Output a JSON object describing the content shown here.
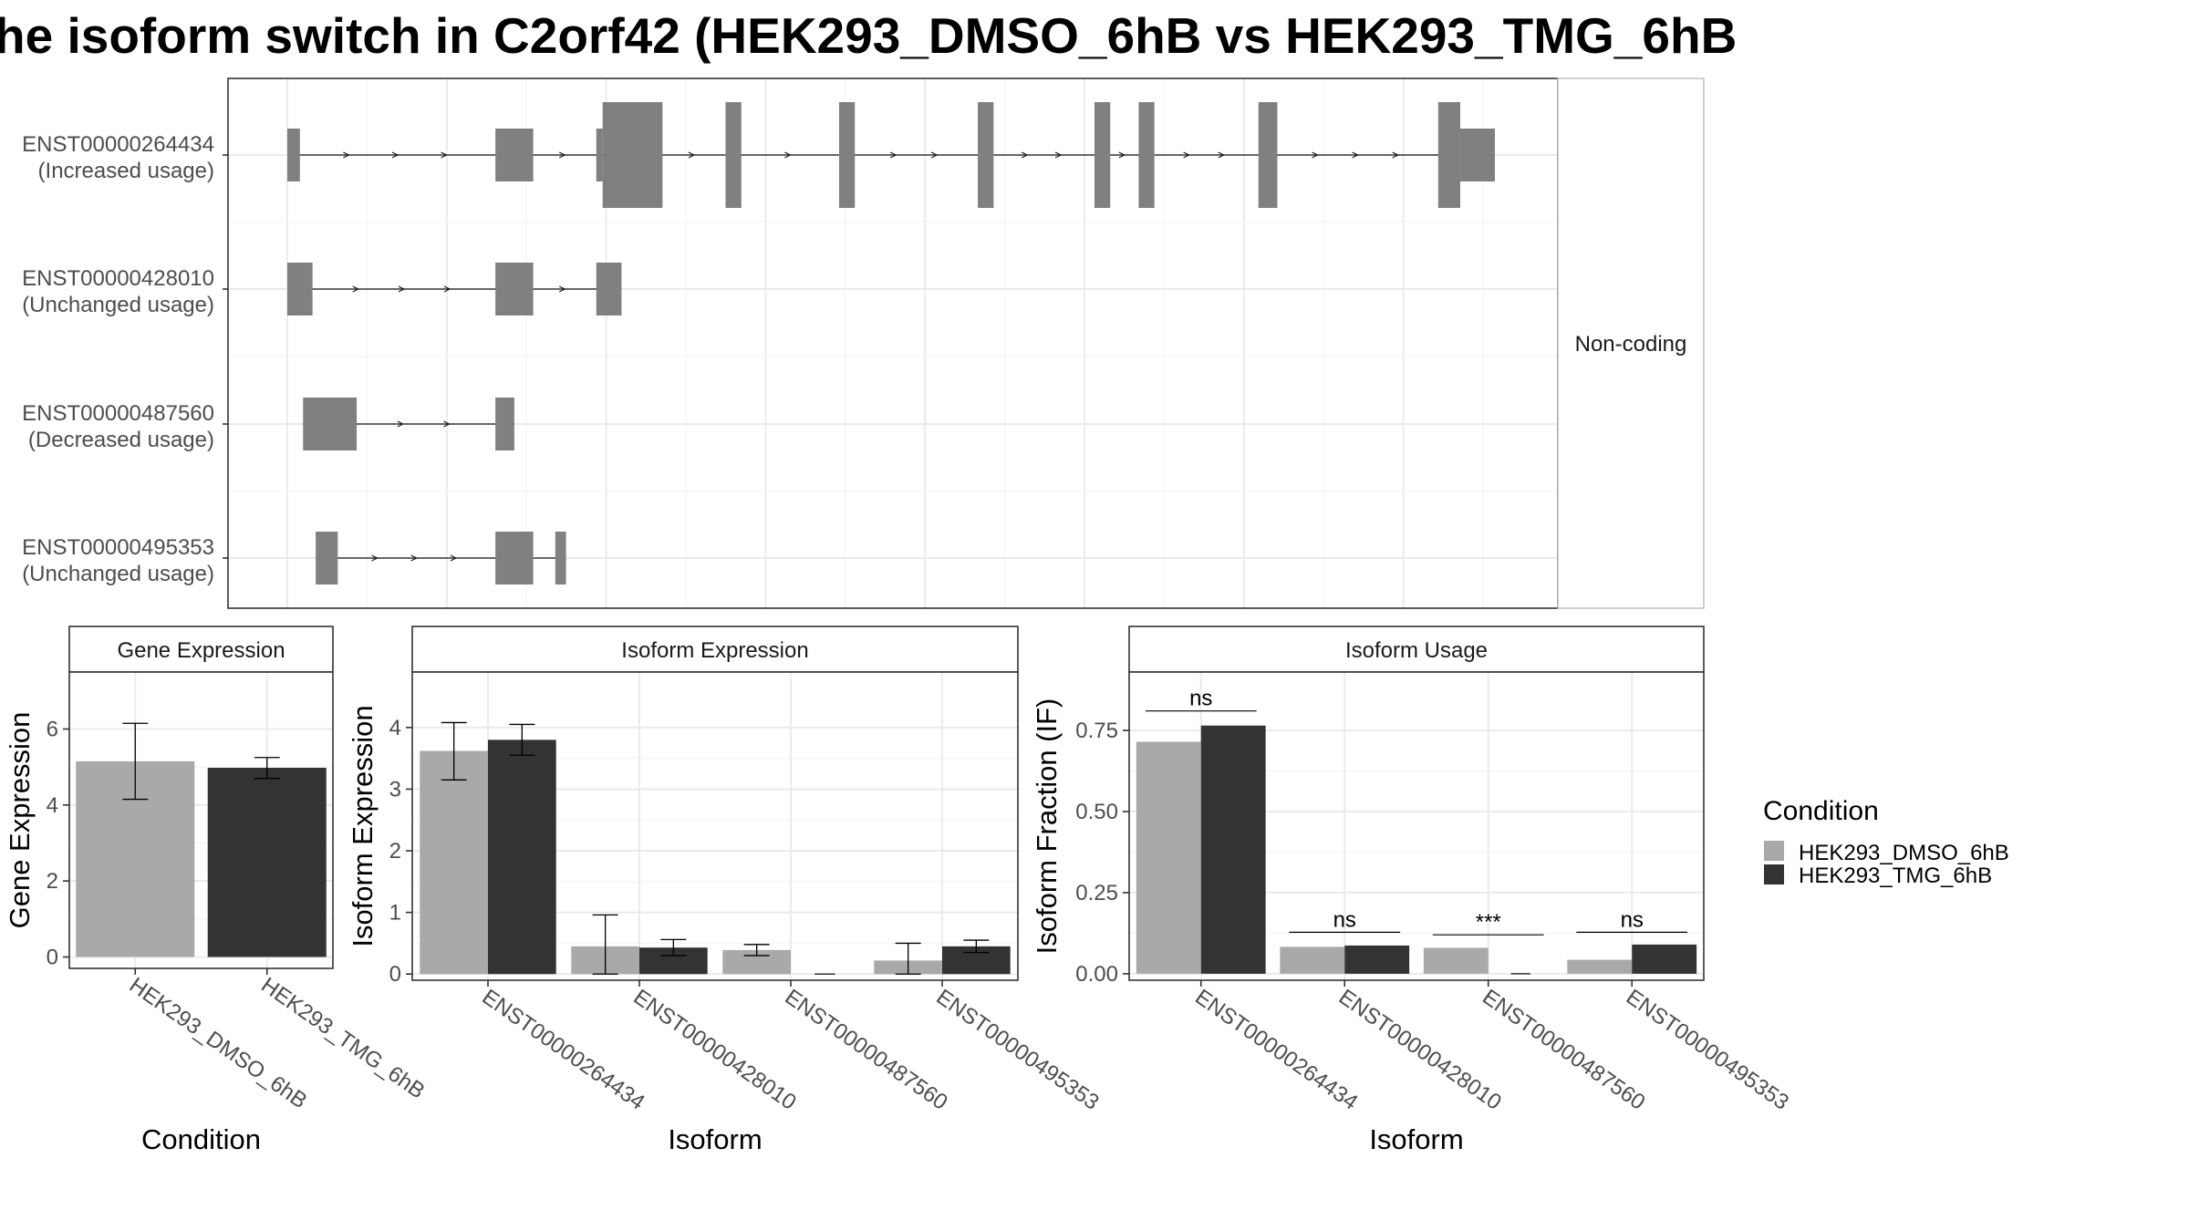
{
  "title": "he isoform switch in C2orf42 (HEK293_DMSO_6hB vs HEK293_TMG_6hB",
  "colors": {
    "exon": "#808080",
    "dmso": "#a9a9a9",
    "tmg": "#333333"
  },
  "chart_data": [
    {
      "type": "gene-structure",
      "facet_label": "Non-coding",
      "x_range": [
        0,
        2000
      ],
      "transcripts": [
        {
          "id": "ENST00000264434",
          "status": "(Increased usage)",
          "exons": [
            {
              "start": 90,
              "end": 110,
              "size": "small"
            },
            {
              "start": 420,
              "end": 480,
              "size": "small"
            },
            {
              "start": 580,
              "end": 590,
              "size": "small"
            },
            {
              "start": 590,
              "end": 685,
              "size": "large"
            },
            {
              "start": 785,
              "end": 810,
              "size": "large"
            },
            {
              "start": 965,
              "end": 990,
              "size": "large"
            },
            {
              "start": 1185,
              "end": 1210,
              "size": "large"
            },
            {
              "start": 1370,
              "end": 1395,
              "size": "large"
            },
            {
              "start": 1440,
              "end": 1465,
              "size": "large"
            },
            {
              "start": 1630,
              "end": 1660,
              "size": "large"
            },
            {
              "start": 1915,
              "end": 1950,
              "size": "large"
            },
            {
              "start": 1950,
              "end": 2005,
              "size": "small"
            }
          ]
        },
        {
          "id": "ENST00000428010",
          "status": "(Unchanged usage)",
          "exons": [
            {
              "start": 90,
              "end": 130,
              "size": "small"
            },
            {
              "start": 420,
              "end": 480,
              "size": "small"
            },
            {
              "start": 580,
              "end": 620,
              "size": "small"
            }
          ]
        },
        {
          "id": "ENST00000487560",
          "status": "(Decreased usage)",
          "exons": [
            {
              "start": 115,
              "end": 200,
              "size": "small"
            },
            {
              "start": 420,
              "end": 450,
              "size": "small"
            }
          ]
        },
        {
          "id": "ENST00000495353",
          "status": "(Unchanged usage)",
          "exons": [
            {
              "start": 135,
              "end": 170,
              "size": "small"
            },
            {
              "start": 420,
              "end": 480,
              "size": "small"
            },
            {
              "start": 515,
              "end": 532,
              "size": "small"
            }
          ]
        }
      ]
    },
    {
      "type": "bar",
      "strip_label": "Gene Expression",
      "xlabel": "Condition",
      "ylabel": "Gene Expression",
      "ylim": [
        -0.3,
        7.5
      ],
      "yticks": [
        "0",
        "2",
        "4",
        "6"
      ],
      "ytick_values": [
        0,
        2,
        4,
        6
      ],
      "categories": [
        "HEK293_DMSO_6hB",
        "HEK293_TMG_6hB"
      ],
      "values": [
        5.15,
        4.98
      ],
      "error_low": [
        4.15,
        4.7
      ],
      "error_high": [
        6.15,
        5.25
      ]
    },
    {
      "type": "bar",
      "strip_label": "Isoform Expression",
      "xlabel": "Isoform",
      "ylabel": "Isoform Expression",
      "ylim": [
        -0.1,
        4.9
      ],
      "yticks": [
        "0",
        "1",
        "2",
        "3",
        "4"
      ],
      "ytick_values": [
        0,
        1,
        2,
        3,
        4
      ],
      "categories": [
        "ENST00000264434",
        "ENST00000428010",
        "ENST00000487560",
        "ENST00000495353"
      ],
      "series": [
        {
          "name": "HEK293_DMSO_6hB",
          "values": [
            3.62,
            0.45,
            0.39,
            0.22
          ],
          "error_low": [
            3.15,
            0.0,
            0.3,
            0.0
          ],
          "error_high": [
            4.08,
            0.96,
            0.48,
            0.5
          ]
        },
        {
          "name": "HEK293_TMG_6hB",
          "values": [
            3.8,
            0.43,
            0.0,
            0.45
          ],
          "error_low": [
            3.55,
            0.3,
            0.0,
            0.35
          ],
          "error_high": [
            4.05,
            0.56,
            0.0,
            0.55
          ]
        }
      ]
    },
    {
      "type": "bar",
      "strip_label": "Isoform Usage",
      "xlabel": "Isoform",
      "ylabel": "Isoform Fraction (IF)",
      "ylim": [
        -0.02,
        0.93
      ],
      "yticks": [
        "0.00",
        "0.25",
        "0.50",
        "0.75"
      ],
      "ytick_values": [
        0,
        0.25,
        0.5,
        0.75
      ],
      "categories": [
        "ENST00000264434",
        "ENST00000428010",
        "ENST00000487560",
        "ENST00000495353"
      ],
      "series": [
        {
          "name": "HEK293_DMSO_6hB",
          "values": [
            0.715,
            0.083,
            0.08,
            0.043
          ]
        },
        {
          "name": "HEK293_TMG_6hB",
          "values": [
            0.765,
            0.087,
            0.0,
            0.09
          ]
        }
      ],
      "significance": [
        "ns",
        "ns",
        "***",
        "ns"
      ],
      "significance_y": [
        0.81,
        0.128,
        0.12,
        0.128
      ]
    }
  ],
  "legend": {
    "title": "Condition",
    "items": [
      "HEK293_DMSO_6hB",
      "HEK293_TMG_6hB"
    ]
  }
}
